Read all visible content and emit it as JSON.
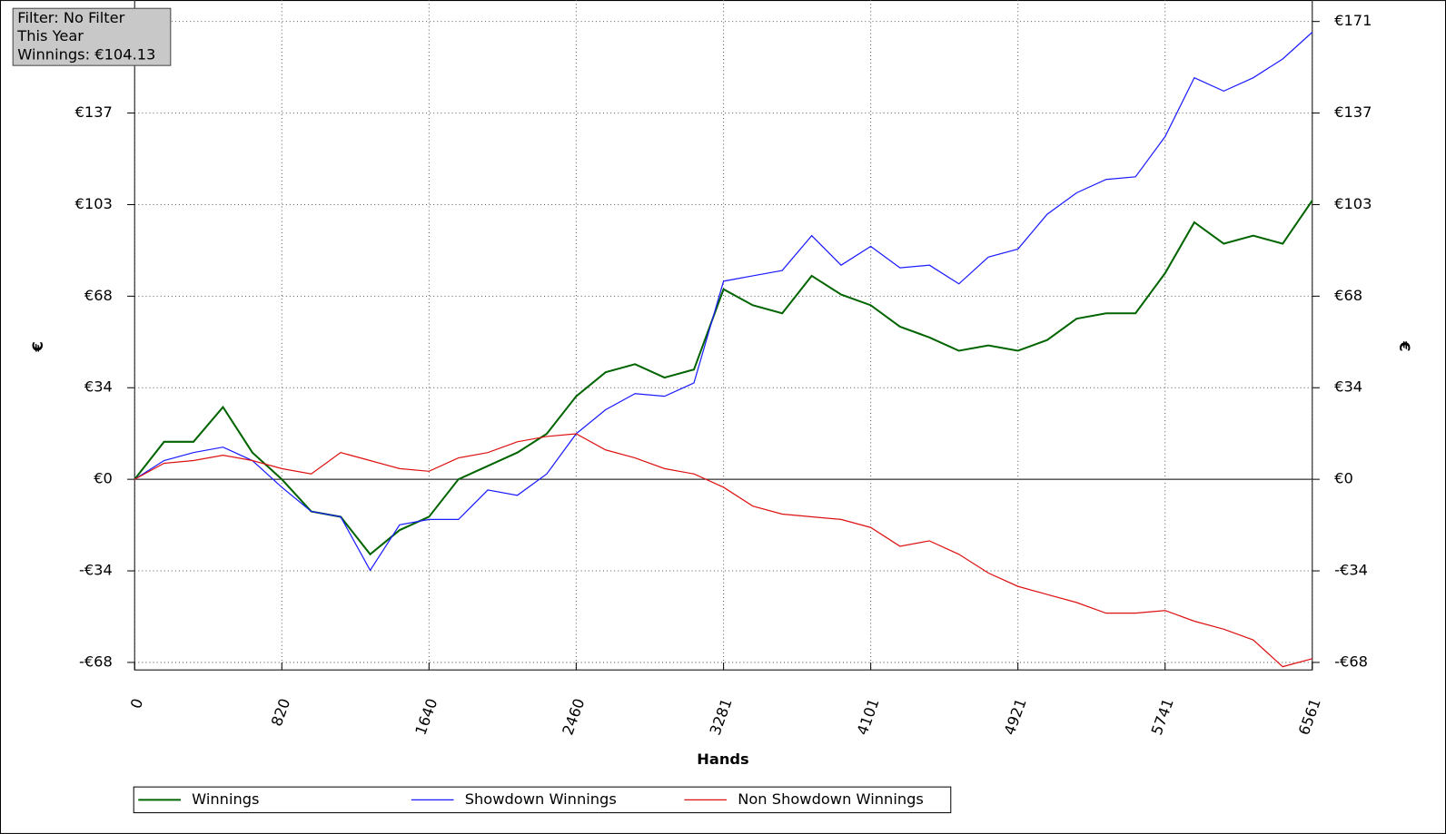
{
  "chart_data": {
    "type": "line",
    "info": [
      "Filter: No Filter",
      "This Year",
      "Winnings: €104.13"
    ],
    "y_label": "€",
    "y2_label": "€",
    "x_label": "Hands",
    "x": [
      0,
      164,
      328,
      492,
      656,
      820,
      984,
      1148,
      1312,
      1476,
      1640,
      1804,
      1968,
      2132,
      2296,
      2460,
      2624,
      2788,
      2952,
      3116,
      3281,
      3444,
      3608,
      3772,
      3936,
      4101,
      4264,
      4428,
      4592,
      4756,
      4921,
      5084,
      5248,
      5412,
      5576,
      5741,
      5904,
      6068,
      6232,
      6396,
      6561
    ],
    "series": [
      {
        "name": "Winnings",
        "color": "#006400",
        "values": [
          0,
          14,
          14,
          27,
          10,
          0,
          -12,
          -14,
          -28,
          -19,
          -14,
          0,
          5,
          10,
          17,
          31,
          40,
          43,
          38,
          41,
          71,
          65,
          62,
          76,
          69,
          65,
          57,
          53,
          48,
          50,
          48,
          52,
          60,
          62,
          62,
          77,
          96,
          88,
          91,
          88,
          104.13
        ]
      },
      {
        "name": "Showdown Winnings",
        "color": "#1a1aff",
        "values": [
          0,
          7,
          10,
          12,
          7,
          -3,
          -12,
          -14,
          -34,
          -17,
          -15,
          -15,
          -4,
          -6,
          2,
          17,
          26,
          32,
          31,
          36,
          74,
          76,
          78,
          91,
          80,
          87,
          79,
          80,
          73,
          83,
          86,
          99,
          107,
          112,
          113,
          128,
          150,
          145,
          150,
          157,
          167
        ]
      },
      {
        "name": "Non Showdown Winnings",
        "color": "#dd1111",
        "values": [
          0,
          6,
          7,
          9,
          7,
          4,
          2,
          10,
          7,
          4,
          3,
          8,
          10,
          14,
          16,
          17,
          11,
          8,
          4,
          2,
          -3,
          -10,
          -13,
          -14,
          -15,
          -18,
          -25,
          -23,
          -28,
          -35,
          -40,
          -43,
          -46,
          -50,
          -50,
          -49,
          -53,
          -56,
          -60,
          -70,
          -67
        ]
      }
    ],
    "xlim": [
      0,
      6561
    ],
    "xticks": [
      0,
      820,
      1640,
      2460,
      3281,
      4101,
      4921,
      5741,
      6561
    ],
    "ylim": [
      -71.2,
      179
    ],
    "yticks": [
      {
        "value": -68.4,
        "label": "-€68"
      },
      {
        "value": -34.2,
        "label": "-€34"
      },
      {
        "value": 0,
        "label": "€0"
      },
      {
        "value": 34.2,
        "label": "€34"
      },
      {
        "value": 68.4,
        "label": "€68"
      },
      {
        "value": 102.6,
        "label": "€103"
      },
      {
        "value": 136.8,
        "label": "€137"
      },
      {
        "value": 171,
        "label": "€171"
      }
    ],
    "grid": true
  }
}
